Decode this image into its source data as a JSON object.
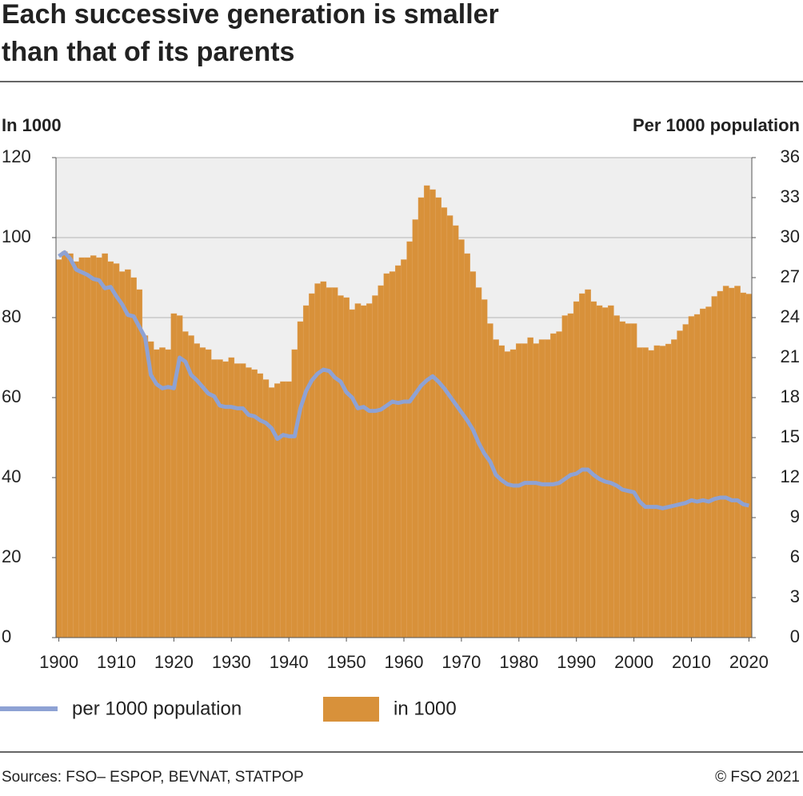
{
  "chart_data": {
    "type": "bar_line",
    "title": [
      "Each successive generation is smaller",
      "than that of its parents"
    ],
    "y_label": "In 1000",
    "y2_label": "Per 1000 population",
    "source": "Sources: FSO– ESPOP, BEVNAT, STATPOP",
    "credit": "© FSO 2021",
    "x": [
      1900,
      1901,
      1902,
      1903,
      1904,
      1905,
      1906,
      1907,
      1908,
      1909,
      1910,
      1911,
      1912,
      1913,
      1914,
      1915,
      1916,
      1917,
      1918,
      1919,
      1920,
      1921,
      1922,
      1923,
      1924,
      1925,
      1926,
      1927,
      1928,
      1929,
      1930,
      1931,
      1932,
      1933,
      1934,
      1935,
      1936,
      1937,
      1938,
      1939,
      1940,
      1941,
      1942,
      1943,
      1944,
      1945,
      1946,
      1947,
      1948,
      1949,
      1950,
      1951,
      1952,
      1953,
      1954,
      1955,
      1956,
      1957,
      1958,
      1959,
      1960,
      1961,
      1962,
      1963,
      1964,
      1965,
      1966,
      1967,
      1968,
      1969,
      1970,
      1971,
      1972,
      1973,
      1974,
      1975,
      1976,
      1977,
      1978,
      1979,
      1980,
      1981,
      1982,
      1983,
      1984,
      1985,
      1986,
      1987,
      1988,
      1989,
      1990,
      1991,
      1992,
      1993,
      1994,
      1995,
      1996,
      1997,
      1998,
      1999,
      2000,
      2001,
      2002,
      2003,
      2004,
      2005,
      2006,
      2007,
      2008,
      2009,
      2010,
      2011,
      2012,
      2013,
      2014,
      2015,
      2016,
      2017,
      2018,
      2019,
      2020
    ],
    "series": [
      {
        "name": "in 1000",
        "kind": "bar",
        "axis": "y",
        "color": "#d8913a",
        "values": [
          94.5,
          96.5,
          96,
          94,
          95,
          95,
          95.5,
          95,
          96,
          94,
          93.5,
          91.5,
          92,
          90,
          87,
          75.5,
          74,
          72,
          72.5,
          72,
          81,
          80.5,
          76.5,
          75.5,
          73.5,
          72.5,
          72,
          69.5,
          69.5,
          69,
          70,
          68.5,
          68.5,
          67.5,
          67,
          66,
          64.5,
          62.5,
          63.5,
          64,
          64,
          72,
          79,
          83,
          86,
          88.5,
          89,
          87.5,
          87.5,
          85.5,
          85,
          82,
          83.5,
          83,
          83.5,
          85.5,
          88,
          91,
          91.5,
          93,
          94.5,
          99,
          104.5,
          110,
          113,
          112,
          110,
          107.5,
          105.5,
          103,
          99.5,
          96,
          91.5,
          87.5,
          84.5,
          78.5,
          74.5,
          73,
          71.5,
          72,
          73.5,
          73.5,
          75,
          73.5,
          74.5,
          74.5,
          76,
          76.5,
          80.5,
          81,
          84,
          86,
          87,
          84,
          83,
          82.5,
          83,
          80.5,
          79,
          78.5,
          78.5,
          72.5,
          72.5,
          71.8,
          73,
          72.9,
          73.4,
          74.5,
          76.7,
          78.3,
          80.3,
          80.8,
          82.2,
          82.7,
          85.3,
          86.6,
          87.9,
          87.4,
          87.9,
          86.2,
          85.9
        ]
      },
      {
        "name": "per 1000 population",
        "kind": "line",
        "axis": "y2",
        "color": "#8ea2d4",
        "values": [
          28.6,
          28.9,
          28.4,
          27.6,
          27.4,
          27.2,
          26.9,
          26.8,
          26.2,
          26.3,
          25.6,
          25,
          24.2,
          24.1,
          23.3,
          22.5,
          19.7,
          19,
          18.7,
          18.8,
          18.7,
          21,
          20.7,
          19.7,
          19.3,
          18.8,
          18.3,
          18.1,
          17.4,
          17.3,
          17.3,
          17.2,
          17.2,
          16.7,
          16.6,
          16.3,
          16.1,
          15.7,
          14.9,
          15.2,
          15.1,
          15.1,
          17.2,
          18.5,
          19.3,
          19.8,
          20.1,
          20,
          19.5,
          19.2,
          18.4,
          18,
          17.2,
          17.3,
          17,
          17,
          17.1,
          17.4,
          17.7,
          17.6,
          17.7,
          17.7,
          18.3,
          18.9,
          19.3,
          19.6,
          19.2,
          18.7,
          18.1,
          17.5,
          16.9,
          16.3,
          15.6,
          14.6,
          13.8,
          13.2,
          12.2,
          11.8,
          11.5,
          11.4,
          11.4,
          11.6,
          11.6,
          11.6,
          11.5,
          11.5,
          11.5,
          11.6,
          11.9,
          12.2,
          12.3,
          12.6,
          12.6,
          12.2,
          11.9,
          11.7,
          11.6,
          11.4,
          11.1,
          11,
          10.9,
          10.2,
          9.8,
          9.8,
          9.8,
          9.7,
          9.8,
          9.9,
          10,
          10.1,
          10.3,
          10.2,
          10.3,
          10.2,
          10.4,
          10.5,
          10.5,
          10.3,
          10.3,
          10,
          9.9
        ]
      }
    ],
    "xlim": [
      1899.5,
      2020.5
    ],
    "xticks": [
      1900,
      1910,
      1920,
      1930,
      1940,
      1950,
      1960,
      1970,
      1980,
      1990,
      2000,
      2010,
      2020
    ],
    "ylim": [
      0,
      120
    ],
    "yticks": [
      0,
      20,
      40,
      60,
      80,
      100,
      120
    ],
    "y2lim": [
      0,
      36
    ],
    "y2ticks": [
      0,
      3,
      6,
      9,
      12,
      15,
      18,
      21,
      24,
      27,
      30,
      33,
      36
    ],
    "grid": true
  }
}
